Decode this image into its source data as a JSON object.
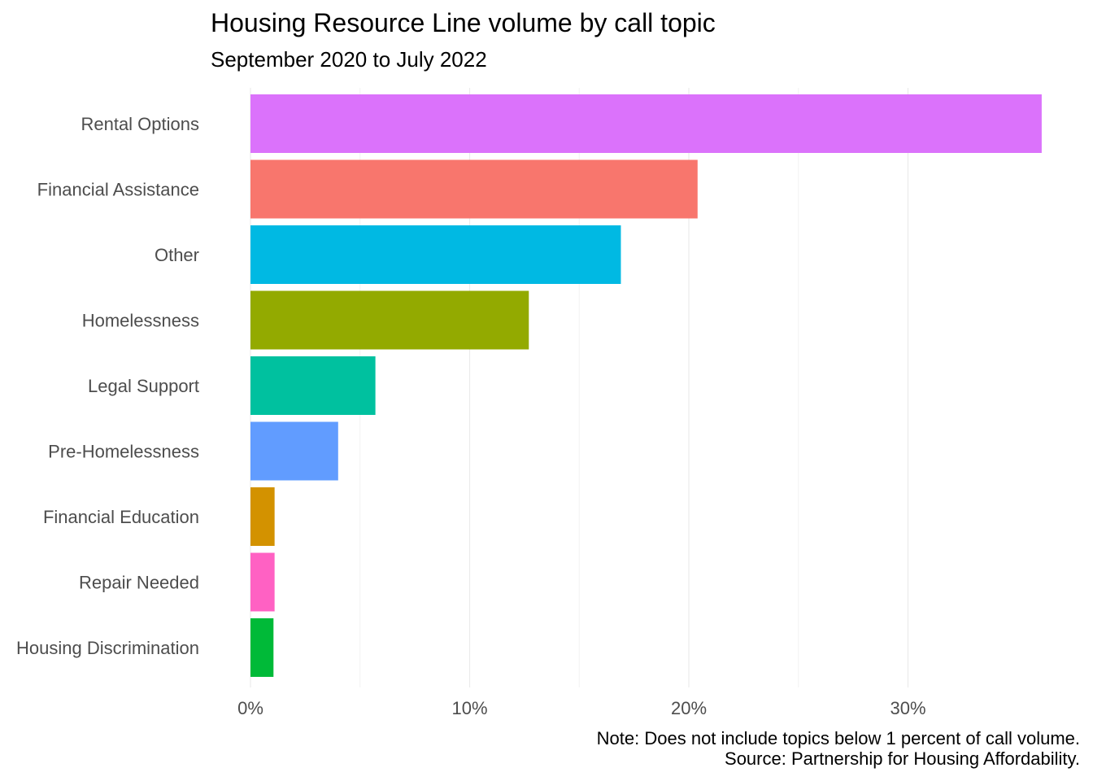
{
  "chart_data": {
    "type": "bar",
    "orientation": "horizontal",
    "title": "Housing Resource Line volume by call topic",
    "subtitle": "September 2020 to July 2022",
    "categories": [
      "Rental Options",
      "Financial Assistance",
      "Other",
      "Homelessness",
      "Legal Support",
      "Pre-Homelessness",
      "Financial Education",
      "Repair Needed",
      "Housing Discrimination"
    ],
    "values": [
      36.1,
      20.4,
      16.9,
      12.7,
      5.7,
      4.0,
      1.1,
      1.1,
      1.05
    ],
    "colors": [
      "#DB72FB",
      "#F8766D",
      "#00B9E3",
      "#93AA00",
      "#00C19F",
      "#619CFF",
      "#D39200",
      "#FF61C3",
      "#00BA38"
    ],
    "xticks": [
      0,
      10,
      20,
      30
    ],
    "xtick_labels": [
      "0%",
      "10%",
      "20%",
      "30%"
    ],
    "xlim": [
      0,
      37
    ],
    "grid": "vertical",
    "legend": "none",
    "xlabel": "",
    "ylabel": ""
  },
  "caption": {
    "note": "Note: Does not include topics below 1 percent of call volume.",
    "source": "Source: Partnership for Housing Affordability."
  }
}
